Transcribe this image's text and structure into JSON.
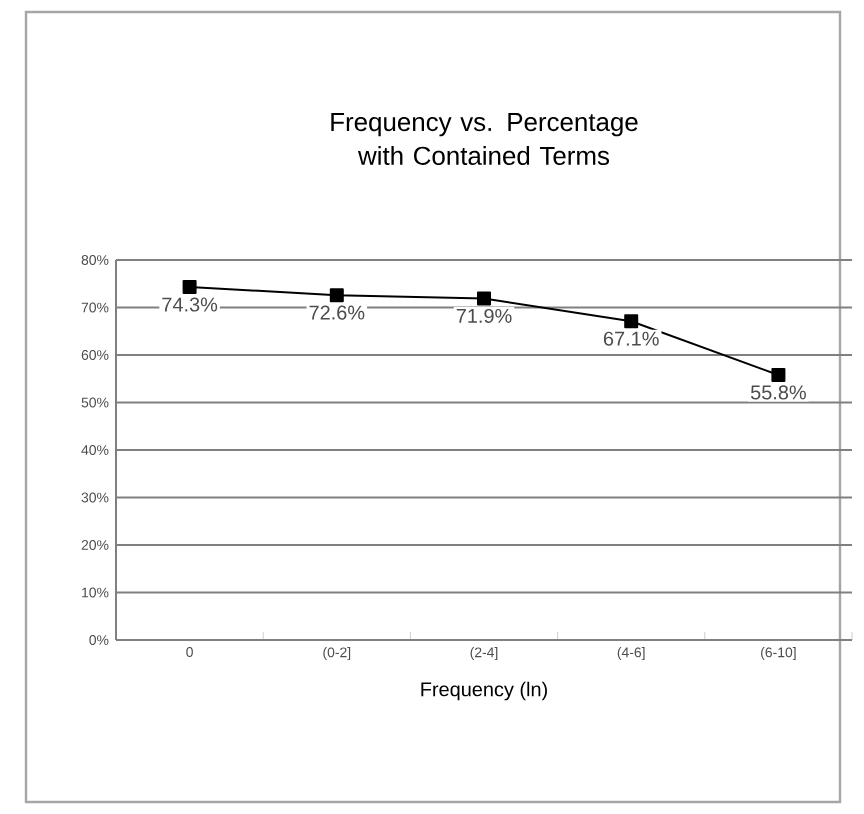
{
  "chart_data": {
    "type": "line",
    "title": "Frequency vs. Percentage with Contained Terms",
    "xlabel": "Frequency (ln)",
    "categories": [
      "0",
      "(0-2]",
      "(2-4]",
      "(4-6]",
      "(6-10]"
    ],
    "series": [
      {
        "color": "#000000",
        "values": [
          74.3,
          72.6,
          71.9,
          67.1,
          55.8
        ],
        "value_labels": [
          "74.3%",
          "72.6%",
          "71.9%",
          "67.1%",
          "55.8%"
        ]
      }
    ],
    "ylim": [
      0,
      80
    ],
    "yticks": [
      {
        "value": 0,
        "label": "0%"
      },
      {
        "value": 10,
        "label": "10%"
      },
      {
        "value": 20,
        "label": "20%"
      },
      {
        "value": 30,
        "label": "30%"
      },
      {
        "value": 40,
        "label": "40%"
      },
      {
        "value": 50,
        "label": "50%"
      },
      {
        "value": 60,
        "label": "60%"
      },
      {
        "value": 70,
        "label": "70%"
      },
      {
        "value": 80,
        "label": "80%"
      }
    ],
    "grid": "y",
    "marker": "square",
    "line_style": "solid"
  }
}
